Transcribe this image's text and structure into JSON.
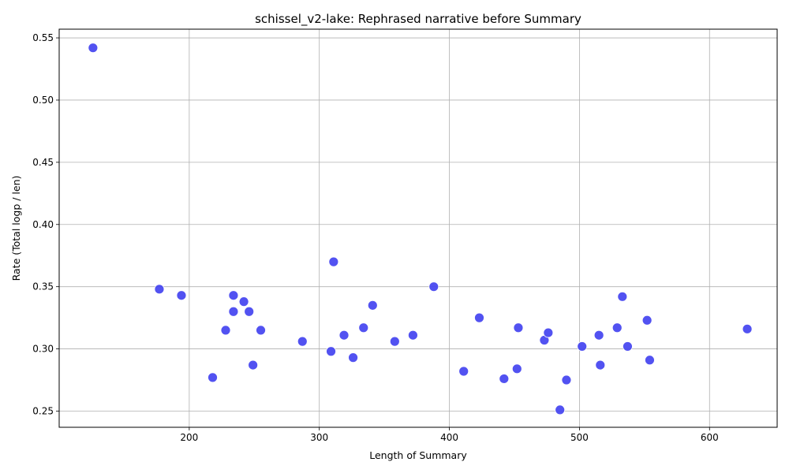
{
  "chart_data": {
    "type": "scatter",
    "title": "schissel_v2-lake: Rephrased narrative before Summary",
    "xlabel": "Length of Summary",
    "ylabel": "Rate (Total logp / len)",
    "xlim": [
      100,
      652
    ],
    "ylim": [
      0.237,
      0.557
    ],
    "xticks": [
      200,
      300,
      400,
      500,
      600
    ],
    "yticks": [
      0.25,
      0.3,
      0.35,
      0.4,
      0.45,
      0.5,
      0.55
    ],
    "xtick_labels": [
      "200",
      "300",
      "400",
      "500",
      "600"
    ],
    "ytick_labels": [
      "0.25",
      "0.30",
      "0.35",
      "0.40",
      "0.45",
      "0.50",
      "0.55"
    ],
    "grid": true,
    "marker_color": "#4545f0",
    "points": [
      {
        "x": 126,
        "y": 0.542
      },
      {
        "x": 177,
        "y": 0.348
      },
      {
        "x": 194,
        "y": 0.343
      },
      {
        "x": 218,
        "y": 0.277
      },
      {
        "x": 228,
        "y": 0.315
      },
      {
        "x": 234,
        "y": 0.343
      },
      {
        "x": 234,
        "y": 0.33
      },
      {
        "x": 242,
        "y": 0.338
      },
      {
        "x": 246,
        "y": 0.33
      },
      {
        "x": 249,
        "y": 0.287
      },
      {
        "x": 255,
        "y": 0.315
      },
      {
        "x": 287,
        "y": 0.306
      },
      {
        "x": 309,
        "y": 0.298
      },
      {
        "x": 311,
        "y": 0.37
      },
      {
        "x": 319,
        "y": 0.311
      },
      {
        "x": 326,
        "y": 0.293
      },
      {
        "x": 334,
        "y": 0.317
      },
      {
        "x": 341,
        "y": 0.335
      },
      {
        "x": 358,
        "y": 0.306
      },
      {
        "x": 372,
        "y": 0.311
      },
      {
        "x": 388,
        "y": 0.35
      },
      {
        "x": 411,
        "y": 0.282
      },
      {
        "x": 423,
        "y": 0.325
      },
      {
        "x": 442,
        "y": 0.276
      },
      {
        "x": 452,
        "y": 0.284
      },
      {
        "x": 453,
        "y": 0.317
      },
      {
        "x": 473,
        "y": 0.307
      },
      {
        "x": 476,
        "y": 0.313
      },
      {
        "x": 485,
        "y": 0.251
      },
      {
        "x": 490,
        "y": 0.275
      },
      {
        "x": 502,
        "y": 0.302
      },
      {
        "x": 515,
        "y": 0.311
      },
      {
        "x": 516,
        "y": 0.287
      },
      {
        "x": 529,
        "y": 0.317
      },
      {
        "x": 533,
        "y": 0.342
      },
      {
        "x": 537,
        "y": 0.302
      },
      {
        "x": 552,
        "y": 0.323
      },
      {
        "x": 554,
        "y": 0.291
      },
      {
        "x": 629,
        "y": 0.316
      }
    ]
  }
}
